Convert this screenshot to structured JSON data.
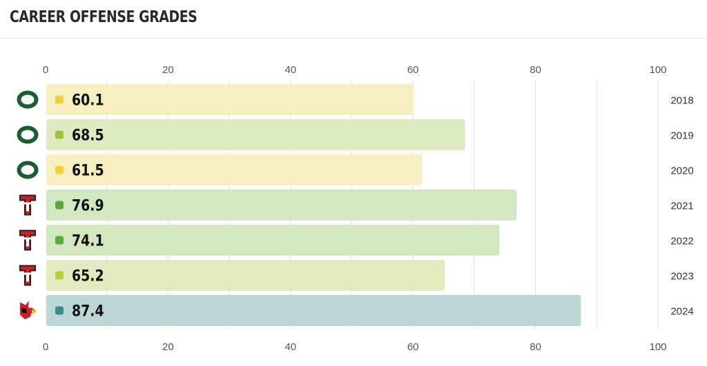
{
  "title": "CAREER OFFENSE GRADES",
  "chart_data": {
    "type": "bar",
    "orientation": "horizontal",
    "title": "CAREER OFFENSE GRADES",
    "xlim": [
      0,
      100
    ],
    "xticks": [
      0,
      20,
      40,
      60,
      80,
      100
    ],
    "grid": true,
    "categories": [
      "2018",
      "2019",
      "2020",
      "2021",
      "2022",
      "2023",
      "2024"
    ],
    "values": [
      60.1,
      68.5,
      61.5,
      76.9,
      74.1,
      65.2,
      87.4
    ],
    "value_labels": [
      "60.1",
      "68.5",
      "61.5",
      "76.9",
      "74.1",
      "65.2",
      "87.4"
    ],
    "teams": [
      "oregon",
      "oregon",
      "oregon",
      "texas-tech",
      "texas-tech",
      "texas-tech",
      "louisville"
    ],
    "bar_colors": [
      "#f8efc0",
      "#deeabf",
      "#f8efc0",
      "#d2e6c0",
      "#d2e6c0",
      "#e4eac0",
      "#bcd8d6"
    ],
    "dot_colors": [
      "#f2cf3c",
      "#9cc43a",
      "#f2cf3c",
      "#5aa83a",
      "#5aa83a",
      "#bccd3a",
      "#3a8c8c"
    ],
    "team_colors": {
      "oregon": "#1b5e2f",
      "texas-tech": "#cc1f27",
      "louisville": "#cc1f27"
    },
    "icons": [
      "oregon-o-logo-icon",
      "texas-tech-double-t-logo-icon",
      "louisville-cardinal-logo-icon"
    ]
  }
}
